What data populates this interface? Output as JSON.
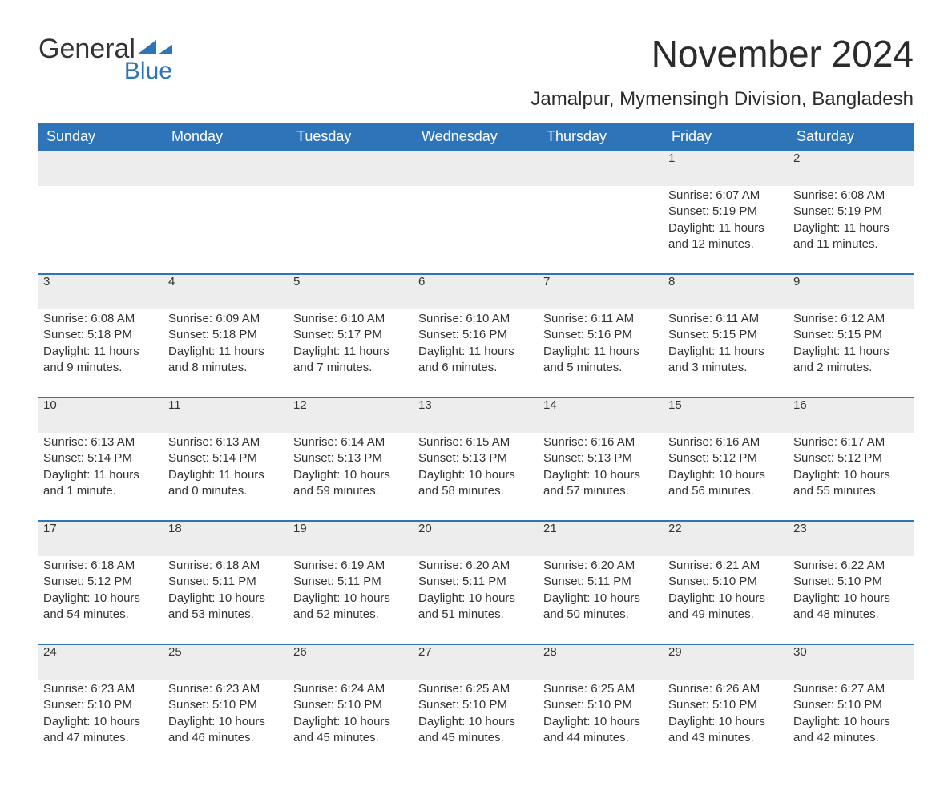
{
  "logo": {
    "word1": "General",
    "word2": "Blue"
  },
  "title": "November 2024",
  "subtitle": "Jamalpur, Mymensingh Division, Bangladesh",
  "colors": {
    "header_bg": "#2d74b9",
    "header_text": "#ffffff",
    "daynum_bg": "#ededed",
    "rule": "#2d74b9",
    "body_text": "#333333",
    "page_bg": "#ffffff"
  },
  "weekday_headers": [
    "Sunday",
    "Monday",
    "Tuesday",
    "Wednesday",
    "Thursday",
    "Friday",
    "Saturday"
  ],
  "weeks": [
    [
      null,
      null,
      null,
      null,
      null,
      {
        "day": "1",
        "sunrise": "Sunrise: 6:07 AM",
        "sunset": "Sunset: 5:19 PM",
        "daylight": "Daylight: 11 hours and 12 minutes."
      },
      {
        "day": "2",
        "sunrise": "Sunrise: 6:08 AM",
        "sunset": "Sunset: 5:19 PM",
        "daylight": "Daylight: 11 hours and 11 minutes."
      }
    ],
    [
      {
        "day": "3",
        "sunrise": "Sunrise: 6:08 AM",
        "sunset": "Sunset: 5:18 PM",
        "daylight": "Daylight: 11 hours and 9 minutes."
      },
      {
        "day": "4",
        "sunrise": "Sunrise: 6:09 AM",
        "sunset": "Sunset: 5:18 PM",
        "daylight": "Daylight: 11 hours and 8 minutes."
      },
      {
        "day": "5",
        "sunrise": "Sunrise: 6:10 AM",
        "sunset": "Sunset: 5:17 PM",
        "daylight": "Daylight: 11 hours and 7 minutes."
      },
      {
        "day": "6",
        "sunrise": "Sunrise: 6:10 AM",
        "sunset": "Sunset: 5:16 PM",
        "daylight": "Daylight: 11 hours and 6 minutes."
      },
      {
        "day": "7",
        "sunrise": "Sunrise: 6:11 AM",
        "sunset": "Sunset: 5:16 PM",
        "daylight": "Daylight: 11 hours and 5 minutes."
      },
      {
        "day": "8",
        "sunrise": "Sunrise: 6:11 AM",
        "sunset": "Sunset: 5:15 PM",
        "daylight": "Daylight: 11 hours and 3 minutes."
      },
      {
        "day": "9",
        "sunrise": "Sunrise: 6:12 AM",
        "sunset": "Sunset: 5:15 PM",
        "daylight": "Daylight: 11 hours and 2 minutes."
      }
    ],
    [
      {
        "day": "10",
        "sunrise": "Sunrise: 6:13 AM",
        "sunset": "Sunset: 5:14 PM",
        "daylight": "Daylight: 11 hours and 1 minute."
      },
      {
        "day": "11",
        "sunrise": "Sunrise: 6:13 AM",
        "sunset": "Sunset: 5:14 PM",
        "daylight": "Daylight: 11 hours and 0 minutes."
      },
      {
        "day": "12",
        "sunrise": "Sunrise: 6:14 AM",
        "sunset": "Sunset: 5:13 PM",
        "daylight": "Daylight: 10 hours and 59 minutes."
      },
      {
        "day": "13",
        "sunrise": "Sunrise: 6:15 AM",
        "sunset": "Sunset: 5:13 PM",
        "daylight": "Daylight: 10 hours and 58 minutes."
      },
      {
        "day": "14",
        "sunrise": "Sunrise: 6:16 AM",
        "sunset": "Sunset: 5:13 PM",
        "daylight": "Daylight: 10 hours and 57 minutes."
      },
      {
        "day": "15",
        "sunrise": "Sunrise: 6:16 AM",
        "sunset": "Sunset: 5:12 PM",
        "daylight": "Daylight: 10 hours and 56 minutes."
      },
      {
        "day": "16",
        "sunrise": "Sunrise: 6:17 AM",
        "sunset": "Sunset: 5:12 PM",
        "daylight": "Daylight: 10 hours and 55 minutes."
      }
    ],
    [
      {
        "day": "17",
        "sunrise": "Sunrise: 6:18 AM",
        "sunset": "Sunset: 5:12 PM",
        "daylight": "Daylight: 10 hours and 54 minutes."
      },
      {
        "day": "18",
        "sunrise": "Sunrise: 6:18 AM",
        "sunset": "Sunset: 5:11 PM",
        "daylight": "Daylight: 10 hours and 53 minutes."
      },
      {
        "day": "19",
        "sunrise": "Sunrise: 6:19 AM",
        "sunset": "Sunset: 5:11 PM",
        "daylight": "Daylight: 10 hours and 52 minutes."
      },
      {
        "day": "20",
        "sunrise": "Sunrise: 6:20 AM",
        "sunset": "Sunset: 5:11 PM",
        "daylight": "Daylight: 10 hours and 51 minutes."
      },
      {
        "day": "21",
        "sunrise": "Sunrise: 6:20 AM",
        "sunset": "Sunset: 5:11 PM",
        "daylight": "Daylight: 10 hours and 50 minutes."
      },
      {
        "day": "22",
        "sunrise": "Sunrise: 6:21 AM",
        "sunset": "Sunset: 5:10 PM",
        "daylight": "Daylight: 10 hours and 49 minutes."
      },
      {
        "day": "23",
        "sunrise": "Sunrise: 6:22 AM",
        "sunset": "Sunset: 5:10 PM",
        "daylight": "Daylight: 10 hours and 48 minutes."
      }
    ],
    [
      {
        "day": "24",
        "sunrise": "Sunrise: 6:23 AM",
        "sunset": "Sunset: 5:10 PM",
        "daylight": "Daylight: 10 hours and 47 minutes."
      },
      {
        "day": "25",
        "sunrise": "Sunrise: 6:23 AM",
        "sunset": "Sunset: 5:10 PM",
        "daylight": "Daylight: 10 hours and 46 minutes."
      },
      {
        "day": "26",
        "sunrise": "Sunrise: 6:24 AM",
        "sunset": "Sunset: 5:10 PM",
        "daylight": "Daylight: 10 hours and 45 minutes."
      },
      {
        "day": "27",
        "sunrise": "Sunrise: 6:25 AM",
        "sunset": "Sunset: 5:10 PM",
        "daylight": "Daylight: 10 hours and 45 minutes."
      },
      {
        "day": "28",
        "sunrise": "Sunrise: 6:25 AM",
        "sunset": "Sunset: 5:10 PM",
        "daylight": "Daylight: 10 hours and 44 minutes."
      },
      {
        "day": "29",
        "sunrise": "Sunrise: 6:26 AM",
        "sunset": "Sunset: 5:10 PM",
        "daylight": "Daylight: 10 hours and 43 minutes."
      },
      {
        "day": "30",
        "sunrise": "Sunrise: 6:27 AM",
        "sunset": "Sunset: 5:10 PM",
        "daylight": "Daylight: 10 hours and 42 minutes."
      }
    ]
  ]
}
